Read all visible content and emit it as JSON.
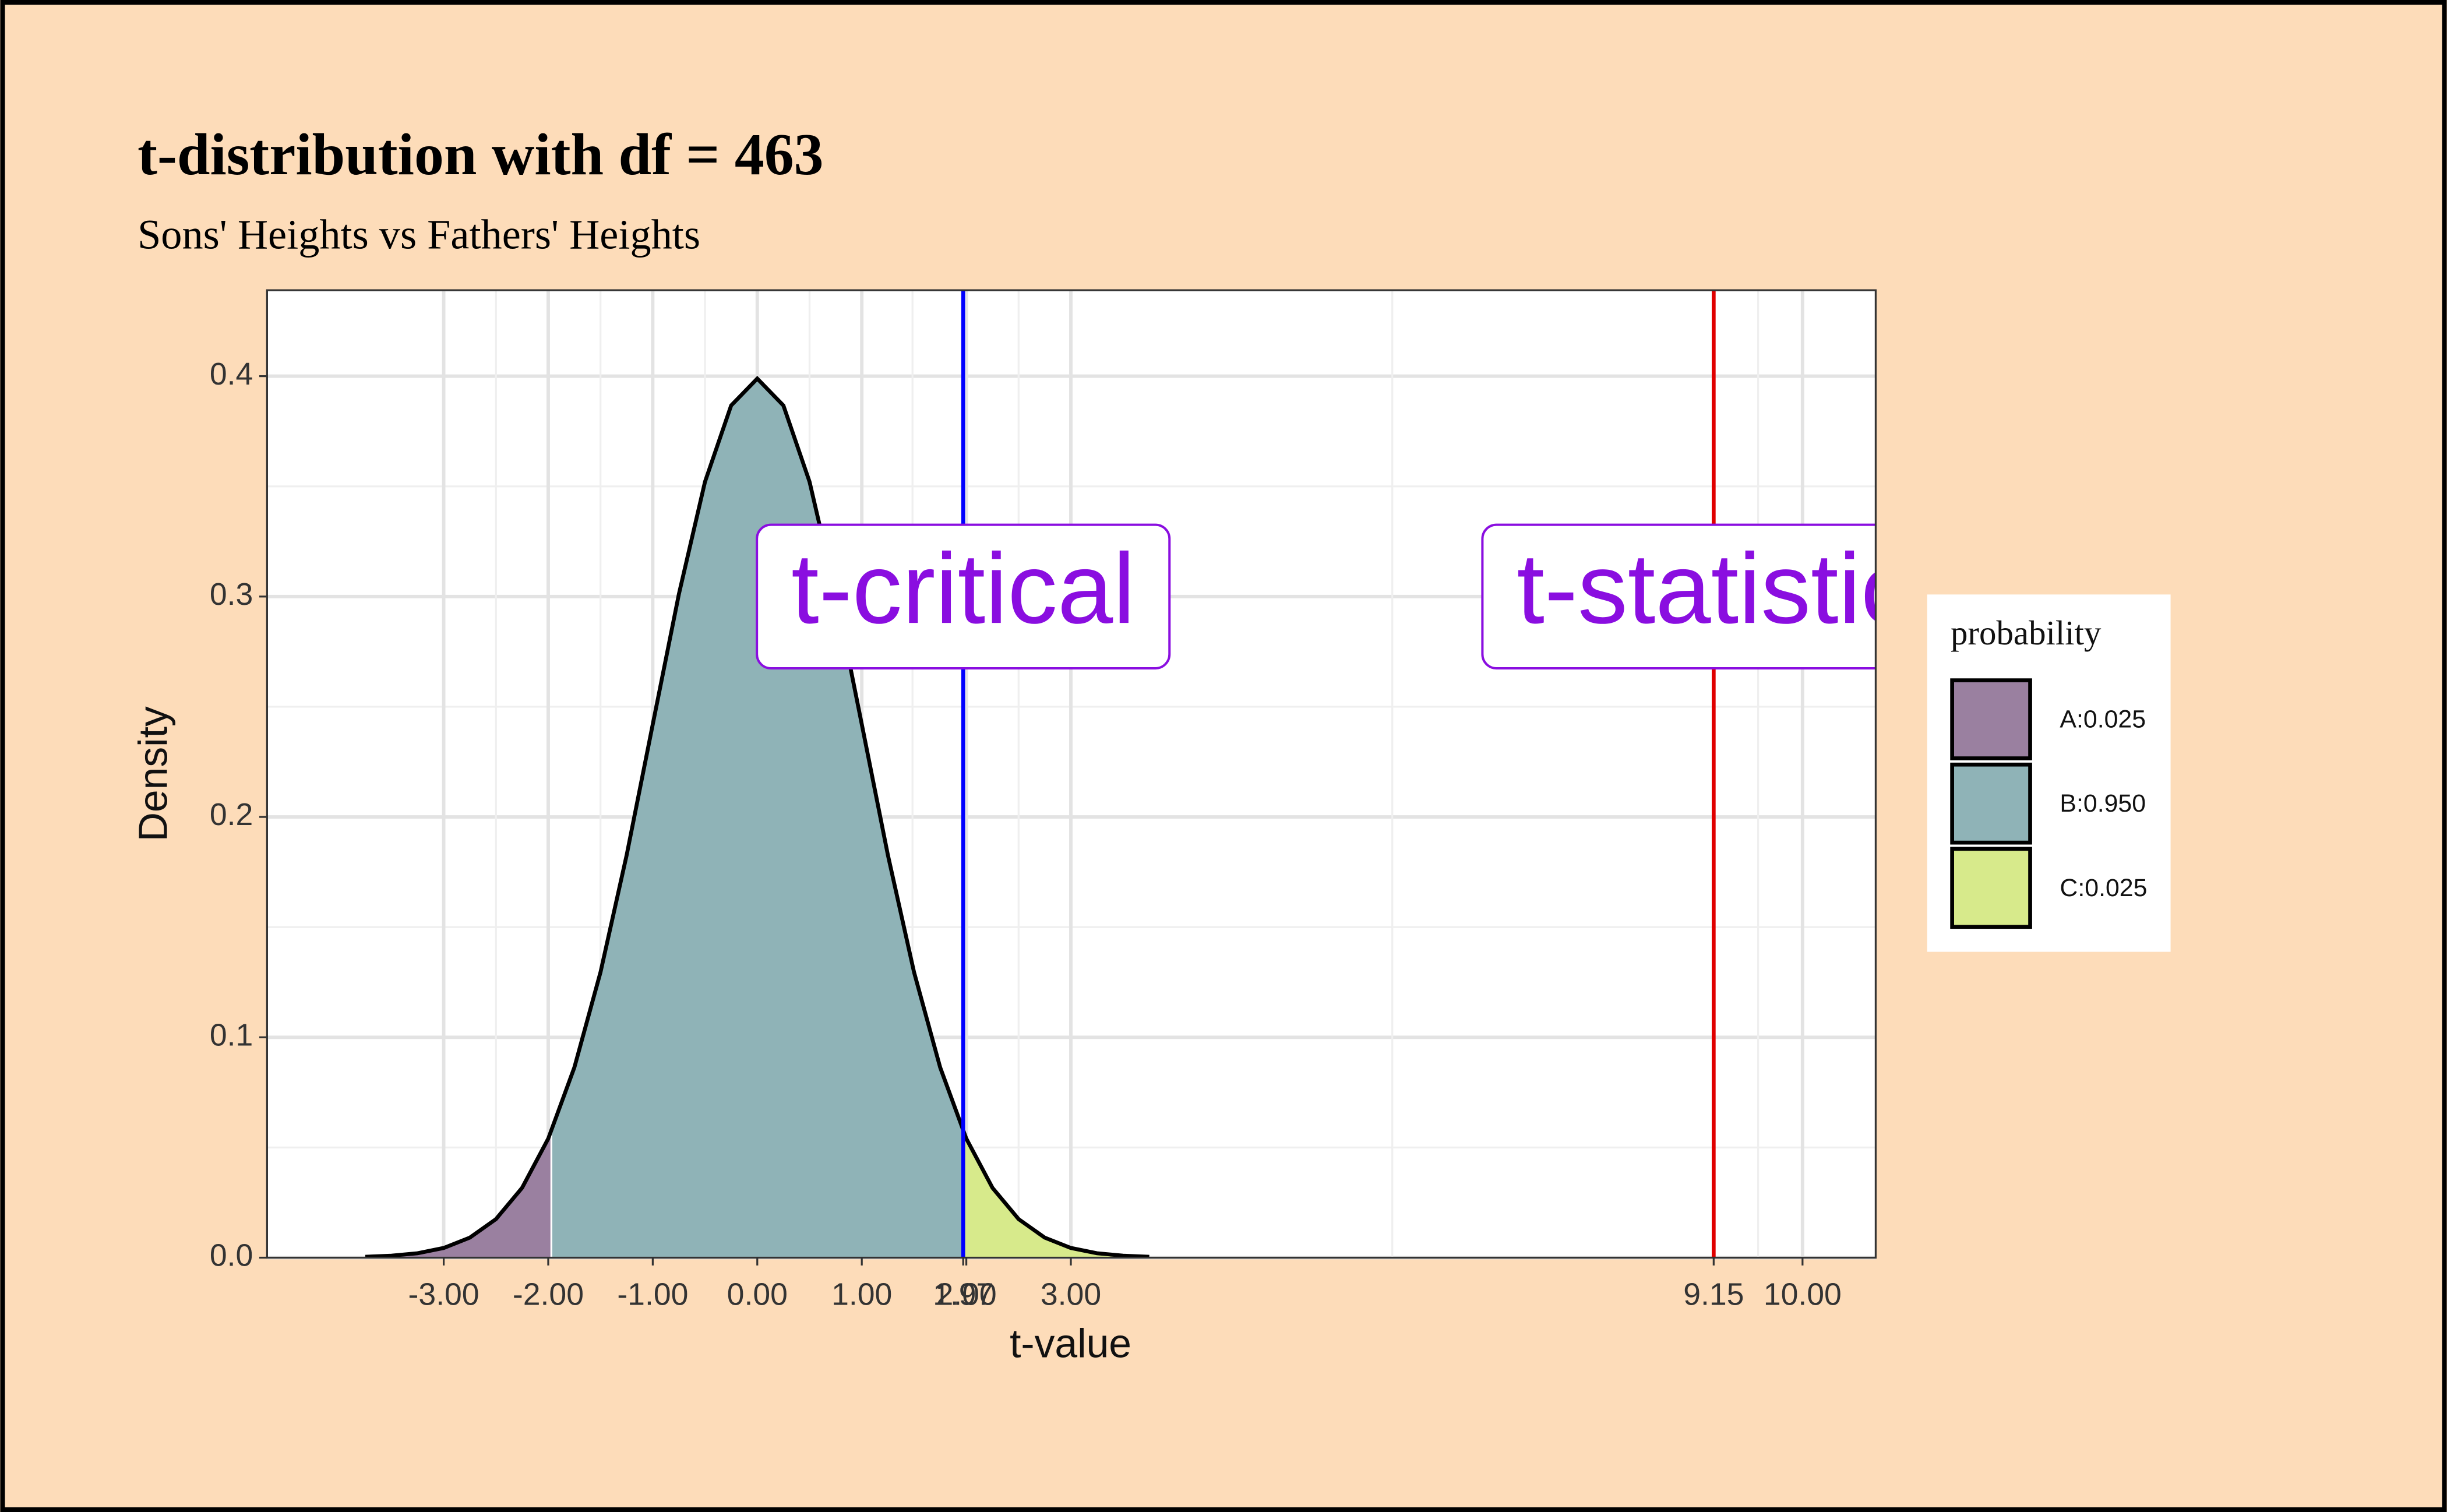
{
  "chart_data": {
    "type": "area",
    "title": "t-distribution with df = 463",
    "subtitle": "Sons' Heights vs Fathers' Heights",
    "x_label": "t-value",
    "y_label": "Density",
    "x": [
      -3.75,
      -3.5,
      -3.25,
      -3.0,
      -2.75,
      -2.5,
      -2.25,
      -2.0,
      -1.75,
      -1.5,
      -1.25,
      -1.0,
      -0.75,
      -0.5,
      -0.25,
      0.0,
      0.25,
      0.5,
      0.75,
      1.0,
      1.25,
      1.5,
      1.75,
      2.0,
      2.25,
      2.5,
      2.75,
      3.0,
      3.25,
      3.5,
      3.75
    ],
    "y": [
      0.0004,
      0.0009,
      0.002,
      0.0044,
      0.0091,
      0.0175,
      0.0317,
      0.054,
      0.0863,
      0.1295,
      0.1826,
      0.242,
      0.3011,
      0.3521,
      0.3867,
      0.3989,
      0.3867,
      0.3521,
      0.3011,
      0.242,
      0.1826,
      0.1295,
      0.0863,
      0.054,
      0.0317,
      0.0175,
      0.0091,
      0.0044,
      0.002,
      0.0009,
      0.0004
    ],
    "region_bounds": [
      -1.97,
      1.97
    ],
    "line_color": "#000000",
    "legend_title": "probability",
    "series": [
      {
        "name": "A:0.025",
        "color": "#9a80a0"
      },
      {
        "name": "B:0.950",
        "color": "#8fb3b7"
      },
      {
        "name": "C:0.025",
        "color": "#d7ea8b"
      }
    ],
    "vlines": [
      {
        "x": 1.97,
        "color": "#0000ff",
        "label": "t-critical",
        "label_y": 0.3
      },
      {
        "x": 9.15,
        "color": "#e00000",
        "label": "t-statistic",
        "label_y": 0.3
      }
    ],
    "label_color": "#8a0ee0",
    "xlim": [
      -4.69,
      10.7
    ],
    "ylim": [
      0,
      0.439
    ],
    "xticks": [
      {
        "value": -3,
        "label": "-3.00"
      },
      {
        "value": -2,
        "label": "-2.00"
      },
      {
        "value": -1,
        "label": "-1.00"
      },
      {
        "value": 0,
        "label": "0.00"
      },
      {
        "value": 1,
        "label": "1.00"
      },
      {
        "value": 1.97,
        "label": "1.97"
      },
      {
        "value": 2,
        "label": "2.00"
      },
      {
        "value": 3,
        "label": "3.00"
      },
      {
        "value": 9.15,
        "label": "9.15"
      },
      {
        "value": 10,
        "label": "10.00"
      }
    ],
    "yticks": [
      {
        "value": 0,
        "label": "0.0"
      },
      {
        "value": 0.1,
        "label": "0.1"
      },
      {
        "value": 0.2,
        "label": "0.2"
      },
      {
        "value": 0.3,
        "label": "0.3"
      },
      {
        "value": 0.4,
        "label": "0.4"
      }
    ],
    "grid": true
  }
}
